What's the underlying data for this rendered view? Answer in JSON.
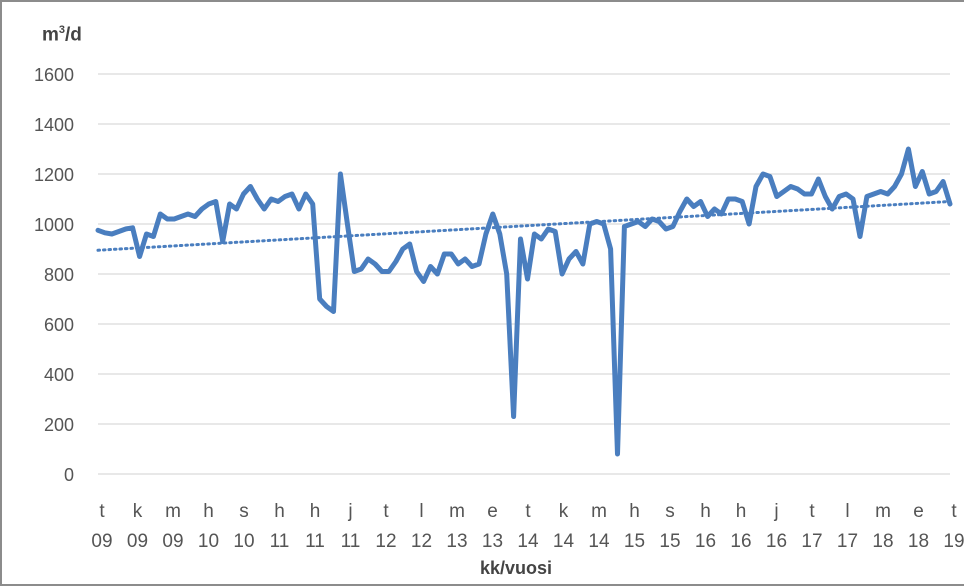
{
  "chart_data": {
    "type": "line",
    "ylabel_unit": "m",
    "ylabel_sup": "3",
    "ylabel_rest": "/d",
    "xlabel": "kk/vuosi",
    "ylim": [
      0,
      1600
    ],
    "yticks": [
      0,
      200,
      400,
      600,
      800,
      1000,
      1200,
      1400,
      1600
    ],
    "grid": true,
    "x_month_labels": [
      "t",
      "k",
      "m",
      "h",
      "s",
      "h",
      "h",
      "j",
      "t",
      "l",
      "m",
      "e",
      "t",
      "k",
      "m",
      "h",
      "s",
      "h",
      "h",
      "j",
      "t",
      "l",
      "m",
      "e",
      "t"
    ],
    "x_year_labels": [
      "09",
      "09",
      "09",
      "10",
      "10",
      "11",
      "11",
      "11",
      "12",
      "12",
      "13",
      "13",
      "14",
      "14",
      "14",
      "15",
      "15",
      "16",
      "16",
      "16",
      "17",
      "17",
      "18",
      "18",
      "19"
    ],
    "series": [
      {
        "values": [
          975,
          965,
          960,
          970,
          980,
          985,
          870,
          960,
          950,
          1040,
          1020,
          1020,
          1030,
          1040,
          1030,
          1060,
          1080,
          1090,
          930,
          1080,
          1060,
          1120,
          1150,
          1100,
          1060,
          1100,
          1090,
          1110,
          1120,
          1060,
          1120,
          1080,
          700,
          670,
          650,
          1200,
          1000,
          810,
          820,
          860,
          840,
          810,
          810,
          850,
          900,
          920,
          810,
          770,
          830,
          800,
          880,
          880,
          840,
          860,
          830,
          840,
          960,
          1040,
          960,
          800,
          230,
          940,
          780,
          960,
          940,
          980,
          970,
          800,
          860,
          890,
          840,
          1000,
          1010,
          1000,
          900,
          80,
          990,
          1000,
          1010,
          990,
          1020,
          1010,
          980,
          990,
          1050,
          1100,
          1070,
          1090,
          1030,
          1060,
          1040,
          1100,
          1100,
          1090,
          1000,
          1150,
          1200,
          1190,
          1110,
          1130,
          1150,
          1140,
          1120,
          1120,
          1180,
          1110,
          1060,
          1110,
          1120,
          1100,
          950,
          1110,
          1120,
          1130,
          1120,
          1150,
          1200,
          1300,
          1150,
          1210,
          1120,
          1130,
          1170,
          1080
        ],
        "color": "#4a7ebf"
      }
    ],
    "trendline": {
      "style": "dotted",
      "start": 895,
      "end": 1090,
      "color": "#4a7ebf"
    }
  }
}
